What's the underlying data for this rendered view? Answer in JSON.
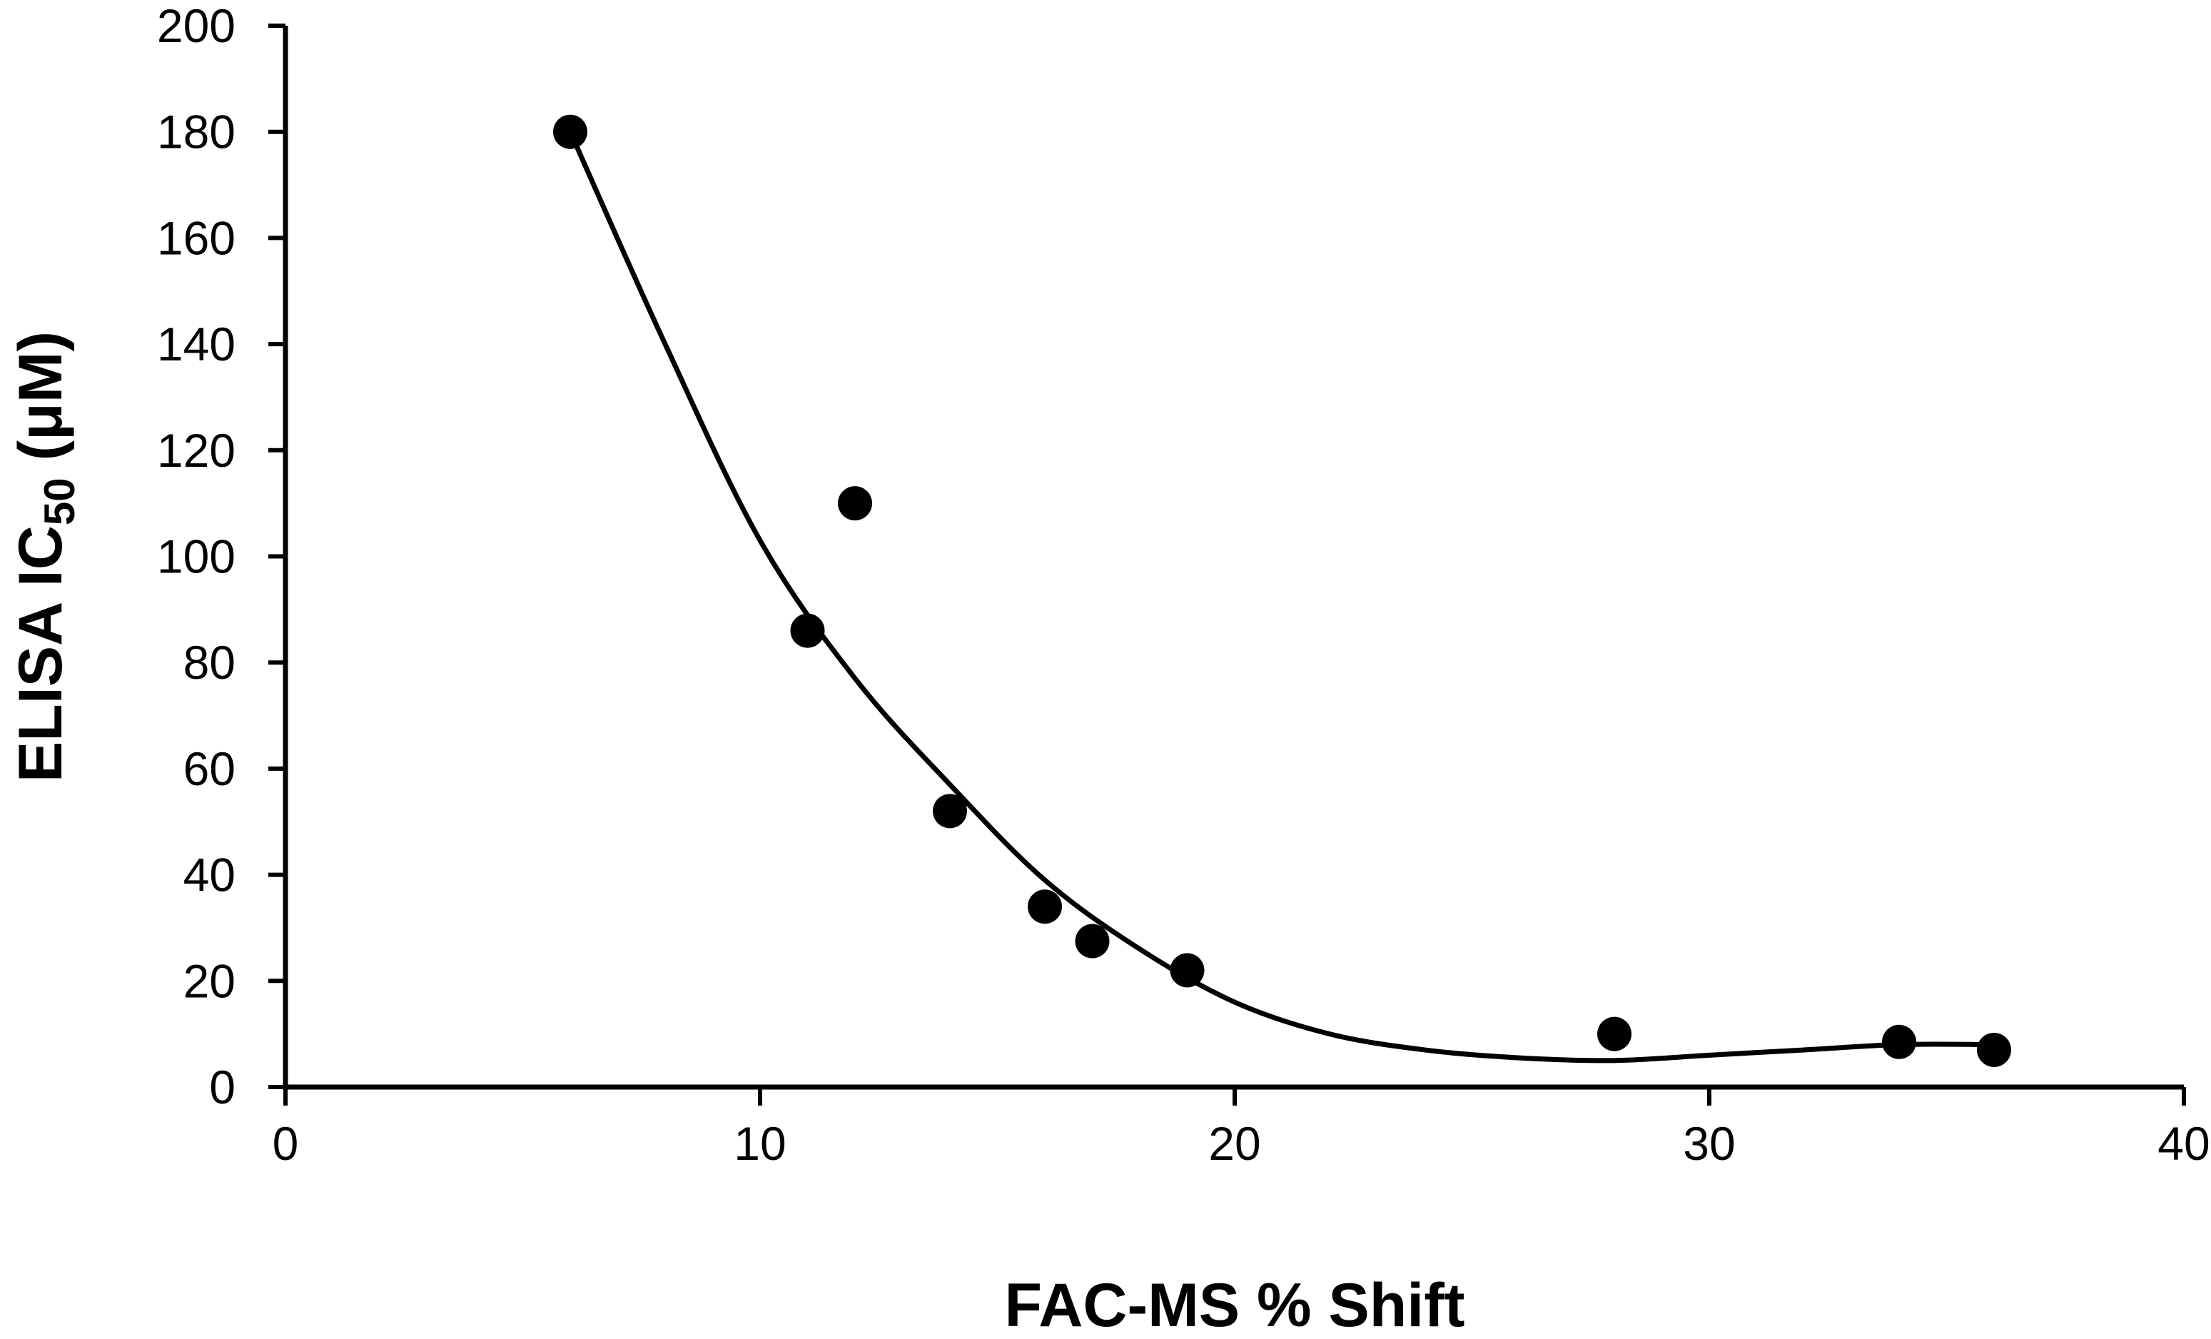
{
  "chart_data": {
    "type": "scatter",
    "title": "",
    "xlabel": "FAC-MS % Shift",
    "ylabel": {
      "main": "ELISA IC",
      "subscript": "50",
      "unit": " (μM)"
    },
    "xlim": [
      0,
      40
    ],
    "ylim": [
      0,
      200
    ],
    "x_ticks": [
      0,
      10,
      20,
      30,
      40
    ],
    "y_ticks": [
      0,
      20,
      40,
      60,
      80,
      100,
      120,
      140,
      160,
      180,
      200
    ],
    "grid": false,
    "legend": "none",
    "marker_color": "#000000",
    "series": [
      {
        "x": [
          6,
          11,
          12,
          14,
          16,
          17,
          19,
          28,
          34,
          36
        ],
        "y": [
          180,
          86,
          110,
          52,
          34,
          27.5,
          22,
          10,
          8.5,
          7
        ]
      }
    ],
    "trendline": {
      "x": [
        6,
        8,
        10,
        12,
        14,
        16,
        18,
        20,
        22,
        24,
        26,
        28,
        30,
        32,
        34,
        36
      ],
      "y": [
        180,
        140,
        103,
        77,
        57,
        39,
        26,
        16,
        10,
        7,
        5.5,
        5,
        6,
        7,
        8,
        8
      ]
    }
  }
}
